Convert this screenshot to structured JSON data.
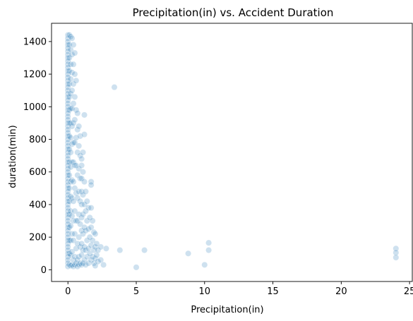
{
  "chart_data": {
    "type": "scatter",
    "title": "Precipitation(in) vs. Accident Duration",
    "xlabel": "Precipitation(in)",
    "ylabel": "duration(min)",
    "xlim": [
      -1.2,
      25.2
    ],
    "ylim": [
      -72,
      1512
    ],
    "xticks": [
      0,
      5,
      10,
      15,
      20,
      25
    ],
    "yticks": [
      0,
      200,
      400,
      600,
      800,
      1000,
      1200,
      1400
    ],
    "xtick_labels": [
      "0",
      "5",
      "10",
      "15",
      "20",
      "25"
    ],
    "ytick_labels": [
      "0",
      "200",
      "400",
      "600",
      "800",
      "1000",
      "1200",
      "1400"
    ],
    "grid": false,
    "marker_color": "#1f77b4",
    "marker_alpha": 0.1,
    "points": [
      [
        0.0,
        1440
      ],
      [
        0.0,
        1420
      ],
      [
        0.0,
        1400
      ],
      [
        0.0,
        1380
      ],
      [
        0.0,
        1360
      ],
      [
        0.0,
        1340
      ],
      [
        0.0,
        1320
      ],
      [
        0.0,
        1300
      ],
      [
        0.0,
        1280
      ],
      [
        0.0,
        1260
      ],
      [
        0.0,
        1240
      ],
      [
        0.0,
        1220
      ],
      [
        0.0,
        1200
      ],
      [
        0.0,
        1180
      ],
      [
        0.0,
        1160
      ],
      [
        0.0,
        1140
      ],
      [
        0.0,
        1120
      ],
      [
        0.0,
        1100
      ],
      [
        0.0,
        1080
      ],
      [
        0.0,
        1060
      ],
      [
        0.0,
        1040
      ],
      [
        0.0,
        1020
      ],
      [
        0.0,
        1000
      ],
      [
        0.0,
        980
      ],
      [
        0.0,
        960
      ],
      [
        0.0,
        940
      ],
      [
        0.0,
        920
      ],
      [
        0.0,
        900
      ],
      [
        0.0,
        880
      ],
      [
        0.0,
        860
      ],
      [
        0.0,
        840
      ],
      [
        0.0,
        820
      ],
      [
        0.0,
        800
      ],
      [
        0.0,
        780
      ],
      [
        0.0,
        760
      ],
      [
        0.0,
        740
      ],
      [
        0.0,
        720
      ],
      [
        0.0,
        700
      ],
      [
        0.0,
        680
      ],
      [
        0.0,
        660
      ],
      [
        0.0,
        640
      ],
      [
        0.0,
        620
      ],
      [
        0.0,
        600
      ],
      [
        0.0,
        580
      ],
      [
        0.0,
        560
      ],
      [
        0.0,
        540
      ],
      [
        0.0,
        520
      ],
      [
        0.0,
        500
      ],
      [
        0.0,
        480
      ],
      [
        0.0,
        460
      ],
      [
        0.0,
        440
      ],
      [
        0.0,
        420
      ],
      [
        0.0,
        400
      ],
      [
        0.0,
        380
      ],
      [
        0.0,
        360
      ],
      [
        0.0,
        340
      ],
      [
        0.0,
        320
      ],
      [
        0.0,
        300
      ],
      [
        0.0,
        280
      ],
      [
        0.0,
        260
      ],
      [
        0.0,
        240
      ],
      [
        0.0,
        220
      ],
      [
        0.0,
        200
      ],
      [
        0.0,
        180
      ],
      [
        0.0,
        160
      ],
      [
        0.0,
        140
      ],
      [
        0.0,
        120
      ],
      [
        0.0,
        100
      ],
      [
        0.0,
        80
      ],
      [
        0.0,
        60
      ],
      [
        0.0,
        40
      ],
      [
        0.0,
        20
      ],
      [
        0.1,
        1440
      ],
      [
        0.1,
        1380
      ],
      [
        0.1,
        1300
      ],
      [
        0.1,
        1220
      ],
      [
        0.1,
        1140
      ],
      [
        0.1,
        1060
      ],
      [
        0.1,
        980
      ],
      [
        0.1,
        900
      ],
      [
        0.1,
        820
      ],
      [
        0.1,
        740
      ],
      [
        0.1,
        660
      ],
      [
        0.1,
        580
      ],
      [
        0.1,
        500
      ],
      [
        0.1,
        420
      ],
      [
        0.1,
        340
      ],
      [
        0.1,
        260
      ],
      [
        0.1,
        180
      ],
      [
        0.1,
        100
      ],
      [
        0.1,
        30
      ],
      [
        0.2,
        1430
      ],
      [
        0.2,
        1350
      ],
      [
        0.2,
        1260
      ],
      [
        0.2,
        1170
      ],
      [
        0.2,
        1080
      ],
      [
        0.2,
        990
      ],
      [
        0.2,
        900
      ],
      [
        0.2,
        810
      ],
      [
        0.2,
        720
      ],
      [
        0.2,
        630
      ],
      [
        0.2,
        540
      ],
      [
        0.2,
        450
      ],
      [
        0.2,
        360
      ],
      [
        0.2,
        270
      ],
      [
        0.2,
        180
      ],
      [
        0.2,
        90
      ],
      [
        0.2,
        25
      ],
      [
        0.3,
        1420
      ],
      [
        0.3,
        1320
      ],
      [
        0.3,
        1210
      ],
      [
        0.3,
        1100
      ],
      [
        0.3,
        990
      ],
      [
        0.3,
        880
      ],
      [
        0.3,
        770
      ],
      [
        0.3,
        660
      ],
      [
        0.3,
        550
      ],
      [
        0.3,
        440
      ],
      [
        0.3,
        330
      ],
      [
        0.3,
        220
      ],
      [
        0.3,
        110
      ],
      [
        0.3,
        30
      ],
      [
        0.4,
        1380
      ],
      [
        0.4,
        1260
      ],
      [
        0.4,
        1140
      ],
      [
        0.4,
        1020
      ],
      [
        0.4,
        900
      ],
      [
        0.4,
        780
      ],
      [
        0.4,
        660
      ],
      [
        0.4,
        540
      ],
      [
        0.4,
        420
      ],
      [
        0.4,
        300
      ],
      [
        0.4,
        180
      ],
      [
        0.4,
        60
      ],
      [
        0.4,
        20
      ],
      [
        0.5,
        1330
      ],
      [
        0.5,
        1200
      ],
      [
        0.5,
        1060
      ],
      [
        0.5,
        920
      ],
      [
        0.5,
        780
      ],
      [
        0.5,
        640
      ],
      [
        0.5,
        500
      ],
      [
        0.5,
        360
      ],
      [
        0.5,
        220
      ],
      [
        0.5,
        80
      ],
      [
        0.5,
        30
      ],
      [
        0.6,
        1160
      ],
      [
        0.6,
        980
      ],
      [
        0.6,
        810
      ],
      [
        0.6,
        640
      ],
      [
        0.6,
        470
      ],
      [
        0.6,
        300
      ],
      [
        0.6,
        130
      ],
      [
        0.6,
        40
      ],
      [
        0.7,
        960
      ],
      [
        0.7,
        860
      ],
      [
        0.7,
        720
      ],
      [
        0.7,
        580
      ],
      [
        0.7,
        440
      ],
      [
        0.7,
        300
      ],
      [
        0.7,
        160
      ],
      [
        0.7,
        60
      ],
      [
        0.7,
        20
      ],
      [
        0.8,
        880
      ],
      [
        0.8,
        760
      ],
      [
        0.8,
        620
      ],
      [
        0.8,
        480
      ],
      [
        0.8,
        340
      ],
      [
        0.8,
        200
      ],
      [
        0.8,
        80
      ],
      [
        0.8,
        30
      ],
      [
        0.9,
        820
      ],
      [
        0.9,
        700
      ],
      [
        0.9,
        560
      ],
      [
        0.9,
        420
      ],
      [
        0.9,
        280
      ],
      [
        0.9,
        140
      ],
      [
        0.9,
        40
      ],
      [
        1.0,
        680
      ],
      [
        1.0,
        640
      ],
      [
        1.0,
        560
      ],
      [
        1.0,
        480
      ],
      [
        1.0,
        400
      ],
      [
        1.0,
        320
      ],
      [
        1.0,
        240
      ],
      [
        1.0,
        160
      ],
      [
        1.0,
        90
      ],
      [
        1.0,
        30
      ],
      [
        1.1,
        720
      ],
      [
        1.1,
        600
      ],
      [
        1.1,
        460
      ],
      [
        1.1,
        340
      ],
      [
        1.1,
        220
      ],
      [
        1.1,
        120
      ],
      [
        1.1,
        40
      ],
      [
        1.2,
        950
      ],
      [
        1.2,
        830
      ],
      [
        1.2,
        540
      ],
      [
        1.2,
        400
      ],
      [
        1.2,
        260
      ],
      [
        1.2,
        140
      ],
      [
        1.2,
        60
      ],
      [
        1.3,
        480
      ],
      [
        1.3,
        360
      ],
      [
        1.3,
        240
      ],
      [
        1.3,
        120
      ],
      [
        1.3,
        30
      ],
      [
        1.4,
        420
      ],
      [
        1.4,
        300
      ],
      [
        1.4,
        180
      ],
      [
        1.4,
        80
      ],
      [
        1.5,
        380
      ],
      [
        1.5,
        250
      ],
      [
        1.5,
        130
      ],
      [
        1.5,
        40
      ],
      [
        1.6,
        320
      ],
      [
        1.6,
        200
      ],
      [
        1.6,
        100
      ],
      [
        1.7,
        540
      ],
      [
        1.7,
        520
      ],
      [
        1.7,
        380
      ],
      [
        1.7,
        260
      ],
      [
        1.7,
        150
      ],
      [
        1.7,
        60
      ],
      [
        1.8,
        300
      ],
      [
        1.8,
        180
      ],
      [
        1.8,
        80
      ],
      [
        1.9,
        230
      ],
      [
        1.9,
        120
      ],
      [
        1.9,
        40
      ],
      [
        2.0,
        220
      ],
      [
        2.0,
        140
      ],
      [
        2.0,
        70
      ],
      [
        2.0,
        25
      ],
      [
        2.1,
        160
      ],
      [
        2.1,
        90
      ],
      [
        2.2,
        120
      ],
      [
        2.2,
        50
      ],
      [
        2.4,
        140
      ],
      [
        2.4,
        60
      ],
      [
        2.6,
        30
      ],
      [
        2.8,
        130
      ],
      [
        3.4,
        1120
      ],
      [
        3.8,
        120
      ],
      [
        5.0,
        15
      ],
      [
        5.6,
        120
      ],
      [
        8.8,
        100
      ],
      [
        10.0,
        30
      ],
      [
        10.3,
        165
      ],
      [
        10.3,
        120
      ],
      [
        24.0,
        130
      ],
      [
        24.0,
        105
      ],
      [
        24.0,
        75
      ]
    ]
  }
}
